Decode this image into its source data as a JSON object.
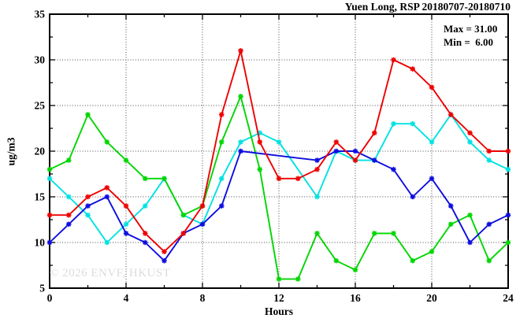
{
  "header": {
    "title": "Yuen Long, RSP 20180707-20180710"
  },
  "annotation": {
    "max_label": "Max = 31.00",
    "min_label": "Min =  6.00"
  },
  "watermark": "© 2026 ENVF, HKUST",
  "chart_data": {
    "type": "line",
    "title": "Yuen Long, RSP 20180707-20180710",
    "xlabel": "Hours",
    "ylabel": "ug/m3",
    "xlim": [
      0,
      24
    ],
    "ylim": [
      5,
      35
    ],
    "xticks": [
      0,
      4,
      8,
      12,
      16,
      20,
      24
    ],
    "x_minor_ticks": [
      2,
      6,
      10,
      14,
      18,
      22
    ],
    "yticks": [
      5,
      10,
      15,
      20,
      25,
      30,
      35
    ],
    "y_minor_ticks": [
      7.5,
      12.5,
      17.5,
      22.5,
      27.5,
      32.5
    ],
    "grid": true,
    "legend": "none",
    "stats": {
      "max": 31.0,
      "min": 6.0
    },
    "x": [
      0,
      1,
      2,
      3,
      4,
      5,
      6,
      7,
      8,
      9,
      10,
      11,
      12,
      13,
      14,
      15,
      16,
      17,
      18,
      19,
      20,
      21,
      22,
      23,
      24
    ],
    "series": [
      {
        "name": "cyan-line",
        "color": "#00e2e2",
        "values": [
          17,
          15,
          13,
          10,
          12,
          14,
          17,
          13,
          12,
          17,
          21,
          22,
          21,
          null,
          15,
          20,
          19,
          19,
          23,
          23,
          21,
          24,
          21,
          19,
          18
        ]
      },
      {
        "name": "green-line",
        "color": "#00d600",
        "values": [
          18,
          19,
          24,
          21,
          19,
          17,
          17,
          13,
          14,
          21,
          26,
          18,
          6,
          6,
          11,
          8,
          7,
          11,
          11,
          8,
          9,
          12,
          13,
          8,
          10
        ]
      },
      {
        "name": "blue-line",
        "color": "#0d0de0",
        "values": [
          10,
          12,
          14,
          15,
          11,
          10,
          8,
          11,
          12,
          14,
          20,
          null,
          null,
          null,
          19,
          20,
          20,
          19,
          18,
          15,
          17,
          14,
          10,
          12,
          13
        ]
      },
      {
        "name": "red-line",
        "color": "#ee0000",
        "values": [
          13,
          13,
          15,
          16,
          14,
          11,
          9,
          11,
          14,
          24,
          31,
          21,
          17,
          17,
          18,
          21,
          19,
          22,
          30,
          29,
          27,
          24,
          22,
          20,
          20
        ]
      }
    ]
  }
}
